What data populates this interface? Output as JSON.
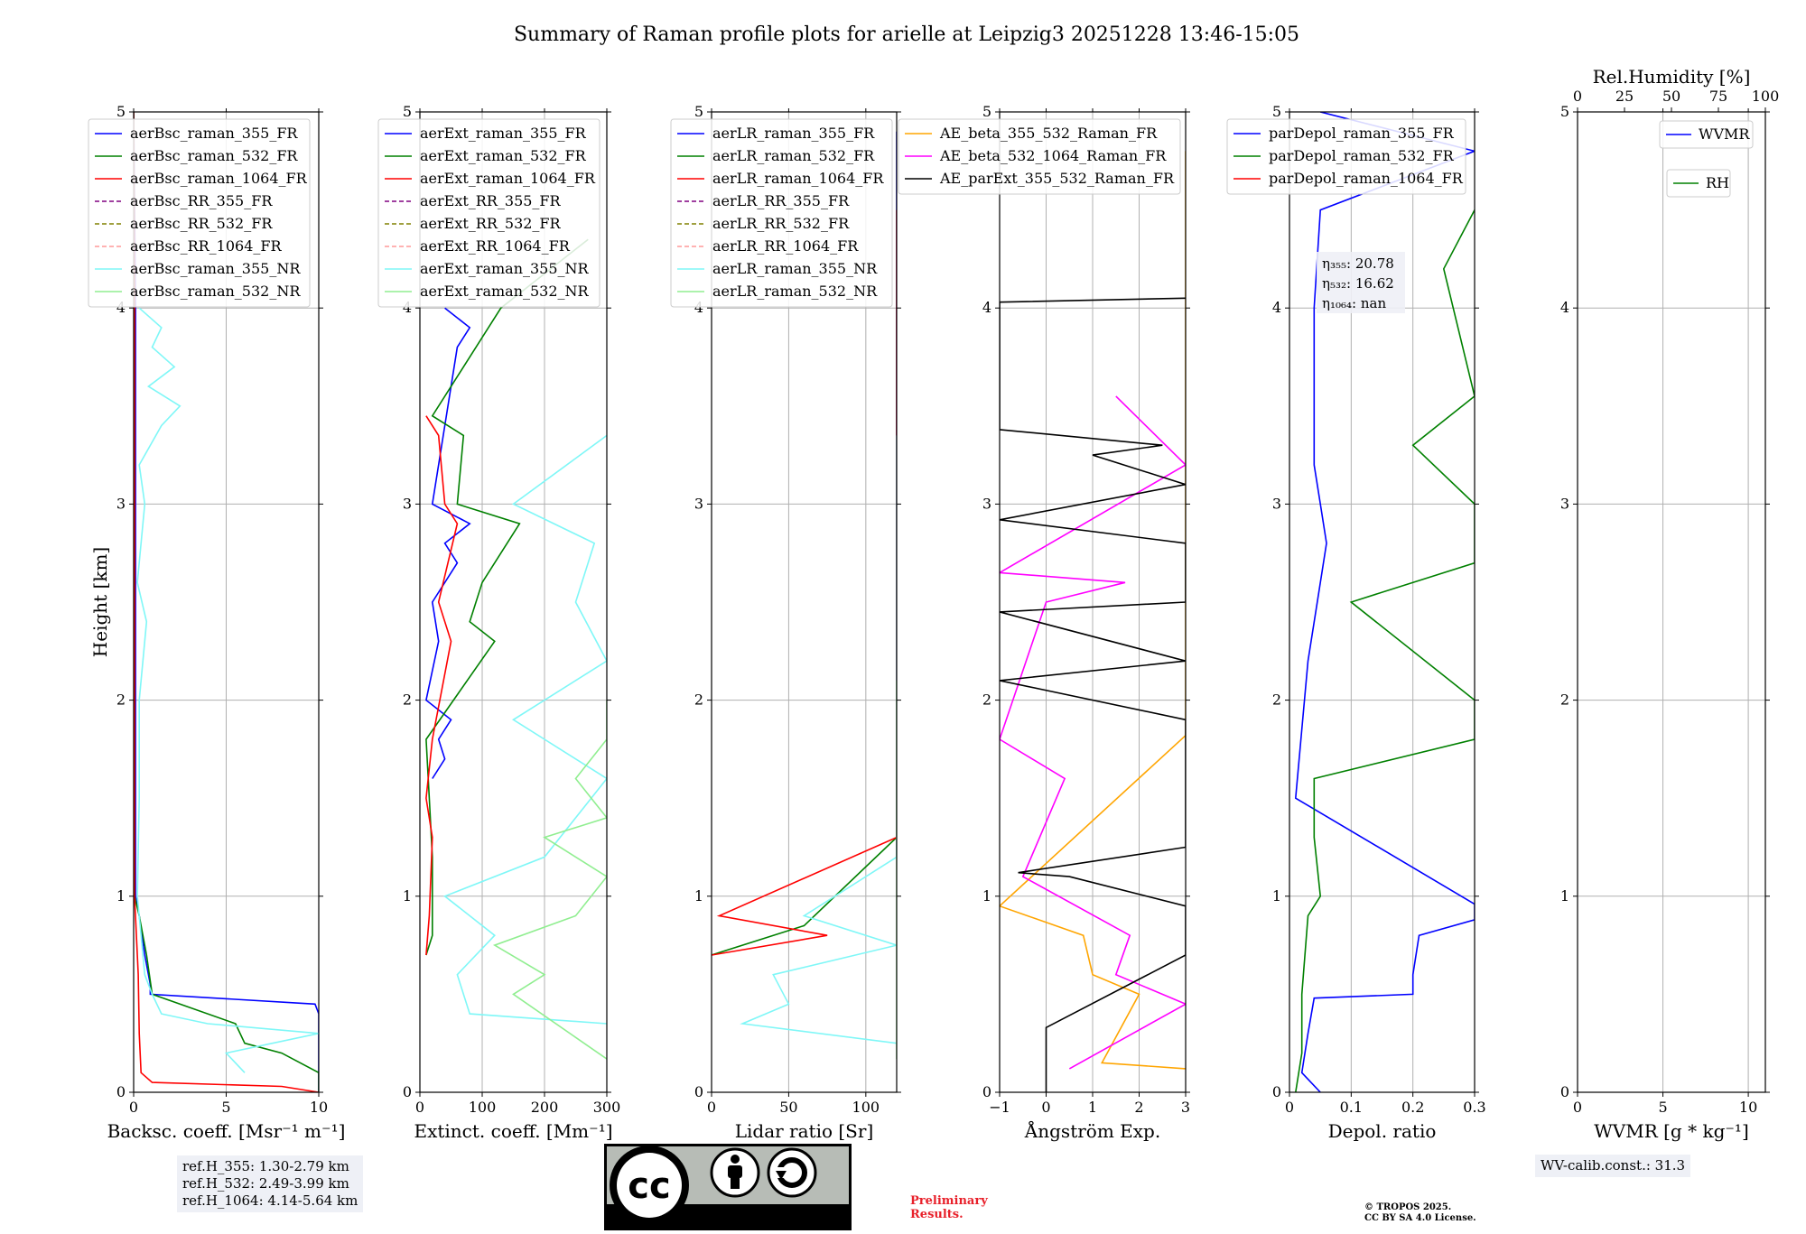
{
  "title": "Summary of Raman profile plots for arielle at Leipzig3 20251228 13:46-15:05",
  "chart_data": [
    {
      "type": "line",
      "id": "backscatter",
      "xlabel": "Backsc. coeff. [Msr⁻¹ m⁻¹]",
      "ylabel": "Height [km]",
      "xlim": [
        0,
        10
      ],
      "ylim": [
        0,
        5
      ],
      "xticks": [
        0,
        5,
        10
      ],
      "yticks": [
        0,
        1,
        2,
        3,
        4,
        5
      ],
      "legend": "upper-left",
      "series": [
        {
          "name": "aerBsc_raman_355_FR",
          "color": "#0000ff",
          "h": [
            0.0,
            0.2,
            0.4,
            0.45,
            0.5,
            0.55,
            0.7,
            0.9,
            1.0,
            2.0,
            3.0,
            4.0,
            5.0
          ],
          "v": [
            10,
            10,
            10,
            9.8,
            0.9,
            0.9,
            0.6,
            0.3,
            0.1,
            0.1,
            0.1,
            0.1,
            0.0
          ]
        },
        {
          "name": "aerBsc_raman_532_FR",
          "color": "#008000",
          "h": [
            0.0,
            0.1,
            0.2,
            0.25,
            0.35,
            0.5,
            0.7,
            0.9,
            1.0,
            2.0,
            3.0,
            4.0,
            5.0
          ],
          "v": [
            10,
            10,
            8,
            6,
            5.5,
            1.0,
            0.7,
            0.3,
            0.05,
            0.05,
            0.05,
            0.05,
            0.0
          ]
        },
        {
          "name": "aerBsc_raman_1064_FR",
          "color": "#ff0000",
          "h": [
            0.0,
            0.03,
            0.05,
            0.1,
            0.3,
            0.6,
            1.0,
            2.0,
            3.0,
            4.0,
            5.0
          ],
          "v": [
            10,
            8,
            1,
            0.4,
            0.3,
            0.25,
            0.05,
            0.05,
            0.05,
            0.05,
            0.0
          ]
        },
        {
          "name": "aerBsc_RR_355_FR",
          "color": "#800080",
          "dash": true,
          "h": [],
          "v": []
        },
        {
          "name": "aerBsc_RR_532_FR",
          "color": "#808000",
          "dash": true,
          "h": [],
          "v": []
        },
        {
          "name": "aerBsc_RR_1064_FR",
          "color": "#ff9999",
          "dash": true,
          "h": [],
          "v": []
        },
        {
          "name": "aerBsc_raman_355_NR",
          "color": "#7ff7f7",
          "h": [
            0.1,
            0.2,
            0.3,
            0.35,
            0.4,
            0.5,
            0.6,
            0.8,
            1.0,
            1.5,
            2.0,
            2.4,
            2.6,
            3.0,
            3.2,
            3.4,
            3.5,
            3.6,
            3.7,
            3.8,
            3.9,
            4.0
          ],
          "v": [
            6,
            5,
            10,
            4,
            1.5,
            1.0,
            0.6,
            0.4,
            0.2,
            0.3,
            0.3,
            0.7,
            0.2,
            0.6,
            0.3,
            1.5,
            2.5,
            0.8,
            2.2,
            1.0,
            1.5,
            0.3
          ]
        },
        {
          "name": "aerBsc_raman_532_NR",
          "color": "#90ee90",
          "h": [],
          "v": []
        }
      ]
    },
    {
      "type": "line",
      "id": "extinction",
      "xlabel": "Extinct. coeff. [Mm⁻¹]",
      "xlim": [
        0,
        300
      ],
      "ylim": [
        0,
        5
      ],
      "xticks": [
        0,
        100,
        200,
        300
      ],
      "yticks": [
        0,
        1,
        2,
        3,
        4,
        5
      ],
      "legend": "upper-left",
      "series": [
        {
          "name": "aerExt_raman_355_FR",
          "color": "#0000ff",
          "h": [
            1.6,
            1.7,
            1.8,
            1.9,
            2.0,
            2.3,
            2.5,
            2.7,
            2.8,
            2.9,
            3.0,
            3.8,
            3.9,
            4.0
          ],
          "v": [
            20,
            40,
            30,
            50,
            10,
            30,
            20,
            60,
            40,
            80,
            20,
            60,
            80,
            40
          ]
        },
        {
          "name": "aerExt_raman_532_FR",
          "color": "#008000",
          "h": [
            0.7,
            0.8,
            1.2,
            1.5,
            1.8,
            2.3,
            2.4,
            2.6,
            2.9,
            3.0,
            3.35,
            3.45,
            4.0,
            4.35
          ],
          "v": [
            10,
            20,
            20,
            15,
            10,
            120,
            80,
            100,
            160,
            60,
            70,
            20,
            130,
            270
          ]
        },
        {
          "name": "aerExt_raman_1064_FR",
          "color": "#ff0000",
          "h": [
            0.7,
            0.9,
            1.3,
            1.5,
            1.8,
            2.3,
            2.5,
            2.9,
            3.0,
            3.35,
            3.45
          ],
          "v": [
            10,
            15,
            20,
            10,
            20,
            50,
            30,
            60,
            40,
            30,
            10
          ]
        },
        {
          "name": "aerExt_RR_355_FR",
          "color": "#800080",
          "dash": true,
          "h": [],
          "v": []
        },
        {
          "name": "aerExt_RR_532_FR",
          "color": "#808000",
          "dash": true,
          "h": [],
          "v": []
        },
        {
          "name": "aerExt_RR_1064_FR",
          "color": "#ff9999",
          "dash": true,
          "h": [],
          "v": []
        },
        {
          "name": "aerExt_raman_355_NR",
          "color": "#7ff7f7",
          "h": [
            0.35,
            0.4,
            0.6,
            0.8,
            1.0,
            1.2,
            1.6,
            1.9,
            2.2,
            2.5,
            2.8,
            3.0,
            3.35
          ],
          "v": [
            300,
            80,
            60,
            120,
            40,
            200,
            300,
            150,
            300,
            250,
            280,
            150,
            300
          ]
        },
        {
          "name": "aerExt_raman_532_NR",
          "color": "#90ee90",
          "h": [
            0.17,
            0.5,
            0.6,
            0.75,
            0.9,
            1.1,
            1.3,
            1.4,
            1.6,
            1.8,
            2.0
          ],
          "v": [
            300,
            150,
            200,
            120,
            250,
            300,
            200,
            300,
            250,
            300,
            300
          ]
        }
      ]
    },
    {
      "type": "line",
      "id": "lidar_ratio",
      "xlabel": "Lidar ratio [Sr]",
      "xlim": [
        0,
        120
      ],
      "ylim": [
        0,
        5
      ],
      "xticks": [
        0,
        50,
        100
      ],
      "yticks": [
        0,
        1,
        2,
        3,
        4,
        5
      ],
      "legend": "upper-left",
      "series": [
        {
          "name": "aerLR_raman_355_FR",
          "color": "#0000ff",
          "h": [
            1.2,
            1.3,
            1.65,
            2.0,
            2.3,
            2.65,
            3.0,
            3.2,
            3.6,
            3.95,
            4.7,
            4.9
          ],
          "v": [
            120,
            120,
            120,
            120,
            120,
            120,
            120,
            120,
            120,
            120,
            120,
            120
          ]
        },
        {
          "name": "aerLR_raman_532_FR",
          "color": "#008000",
          "h": [
            0.7,
            0.85,
            1.3,
            1.35
          ],
          "v": [
            0,
            60,
            120,
            120
          ]
        },
        {
          "name": "aerLR_raman_1064_FR",
          "color": "#ff0000",
          "h": [
            0.7,
            0.8,
            0.9,
            1.3,
            1.8,
            2.5,
            2.8,
            3.05,
            3.3,
            3.45,
            4.0,
            4.5
          ],
          "v": [
            0,
            75,
            5,
            120,
            120,
            120,
            120,
            120,
            120,
            120,
            120,
            120
          ]
        },
        {
          "name": "aerLR_RR_355_FR",
          "color": "#800080",
          "dash": true,
          "h": [],
          "v": []
        },
        {
          "name": "aerLR_RR_532_FR",
          "color": "#808000",
          "dash": true,
          "h": [],
          "v": []
        },
        {
          "name": "aerLR_RR_1064_FR",
          "color": "#ff9999",
          "dash": true,
          "h": [],
          "v": []
        },
        {
          "name": "aerLR_raman_355_NR",
          "color": "#7ff7f7",
          "h": [
            0.25,
            0.35,
            0.45,
            0.6,
            0.75,
            0.9,
            1.2,
            1.5,
            2.0,
            2.5,
            2.9,
            3.35
          ],
          "v": [
            120,
            20,
            50,
            40,
            120,
            60,
            120,
            120,
            120,
            120,
            120,
            120
          ]
        },
        {
          "name": "aerLR_raman_532_NR",
          "color": "#90ee90",
          "h": [
            0.17,
            1.1,
            1.5,
            2.0,
            2.1
          ],
          "v": [
            120,
            120,
            120,
            120,
            120
          ]
        }
      ]
    },
    {
      "type": "line",
      "id": "angstrom",
      "xlabel": "Ångström Exp.",
      "xlim": [
        -1,
        3
      ],
      "ylim": [
        0,
        5
      ],
      "xticks": [
        -1,
        0,
        1,
        2,
        3
      ],
      "yticks": [
        0,
        1,
        2,
        3,
        4,
        5
      ],
      "legend": "upper-right",
      "series": [
        {
          "name": "AE_beta_355_532_Raman_FR",
          "color": "#ffa500",
          "h": [
            0.12,
            0.15,
            0.5,
            0.6,
            0.8,
            0.95,
            1.82,
            2.25,
            2.65,
            3.2,
            4.8
          ],
          "v": [
            3,
            1.2,
            2,
            1,
            0.8,
            -1,
            3,
            3,
            3,
            3,
            3
          ]
        },
        {
          "name": "AE_beta_532_1064_Raman_FR",
          "color": "#ff00ff",
          "h": [
            0.12,
            0.45,
            0.6,
            0.8,
            1.1,
            1.6,
            1.8,
            2.5,
            2.6,
            2.65,
            3.2,
            3.55
          ],
          "v": [
            0.5,
            3,
            1.5,
            1.8,
            -0.5,
            0.4,
            -1,
            0,
            1.7,
            -1,
            3,
            1.5
          ]
        },
        {
          "name": "AE_parExt_355_532_Raman_FR",
          "color": "#000000",
          "h": [
            0.0,
            0.33,
            0.7,
            0.95,
            1.1,
            1.12,
            1.25,
            1.5,
            1.9,
            2.1,
            2.2,
            2.45,
            2.5,
            2.8,
            2.92,
            3.1,
            3.25,
            3.3,
            3.38,
            4.03,
            4.05
          ],
          "v": [
            0,
            0,
            3,
            3,
            0.5,
            -0.6,
            3,
            3,
            3,
            -1,
            3,
            -1,
            3,
            3,
            -1,
            3,
            1,
            2.5,
            -1,
            -1,
            3
          ]
        }
      ]
    },
    {
      "type": "line",
      "id": "depol",
      "xlabel": "Depol. ratio",
      "xlim": [
        0.0,
        0.3
      ],
      "ylim": [
        0,
        5
      ],
      "xticks": [
        0.0,
        0.1,
        0.2,
        0.3
      ],
      "yticks": [
        0,
        1,
        2,
        3,
        4,
        5
      ],
      "legend": "upper-left",
      "annotations": [
        "η₃₅₅: 20.78",
        "η₅₃₂: 16.62",
        "η₁₀₆₄: nan"
      ],
      "series": [
        {
          "name": "parDepol_raman_355_FR",
          "color": "#0000ff",
          "h": [
            0.0,
            0.1,
            0.3,
            0.48,
            0.5,
            0.6,
            0.8,
            0.88,
            0.96,
            1.5,
            2.2,
            2.6,
            2.8,
            3.0,
            3.2,
            4.0,
            4.5,
            4.8,
            5.0
          ],
          "v": [
            0.05,
            0.02,
            0.03,
            0.04,
            0.2,
            0.2,
            0.21,
            0.3,
            0.3,
            0.01,
            0.03,
            0.05,
            0.06,
            0.05,
            0.04,
            0.04,
            0.05,
            0.3,
            0.05
          ]
        },
        {
          "name": "parDepol_raman_532_FR",
          "color": "#008000",
          "h": [
            0.0,
            0.2,
            0.5,
            0.9,
            1.0,
            1.3,
            1.6,
            1.8,
            2.0,
            2.5,
            2.7,
            3.0,
            3.3,
            3.55,
            4.2,
            4.5
          ],
          "v": [
            0.01,
            0.02,
            0.02,
            0.03,
            0.05,
            0.04,
            0.04,
            0.3,
            0.3,
            0.1,
            0.3,
            0.3,
            0.2,
            0.3,
            0.25,
            0.3
          ]
        },
        {
          "name": "parDepol_raman_1064_FR",
          "color": "#ff0000",
          "h": [],
          "v": []
        }
      ]
    },
    {
      "type": "line",
      "id": "wvmr",
      "xlabel": "WVMR [g * kg⁻¹]",
      "top_xlabel": "Rel.Humidity [%]",
      "xlim": [
        0,
        11
      ],
      "ylim": [
        0,
        5
      ],
      "xticks": [
        0,
        5,
        10
      ],
      "top_xticks": [
        0,
        25,
        50,
        75,
        100
      ],
      "yticks": [
        0,
        1,
        2,
        3,
        4,
        5
      ],
      "legend": "upper-right",
      "series": [
        {
          "name": "WVMR",
          "color": "#0000ff",
          "h": [],
          "v": []
        },
        {
          "name": "RH",
          "color": "#008000",
          "h": [],
          "v": []
        }
      ]
    }
  ],
  "ref_heights": {
    "line1": "ref.H_355: 1.30-2.79 km",
    "line2": "ref.H_532: 2.49-3.99 km",
    "line3": "ref.H_1064: 4.14-5.64 km"
  },
  "wv_calib": "WV-calib.const.: 31.3",
  "preliminary": {
    "line1": "Preliminary",
    "line2": "Results."
  },
  "copyright": {
    "line1": "© TROPOS 2025.",
    "line2": "CC BY SA 4.0 License."
  },
  "license_badge": {
    "cc": "cc",
    "by": "BY",
    "sa": "SA"
  }
}
